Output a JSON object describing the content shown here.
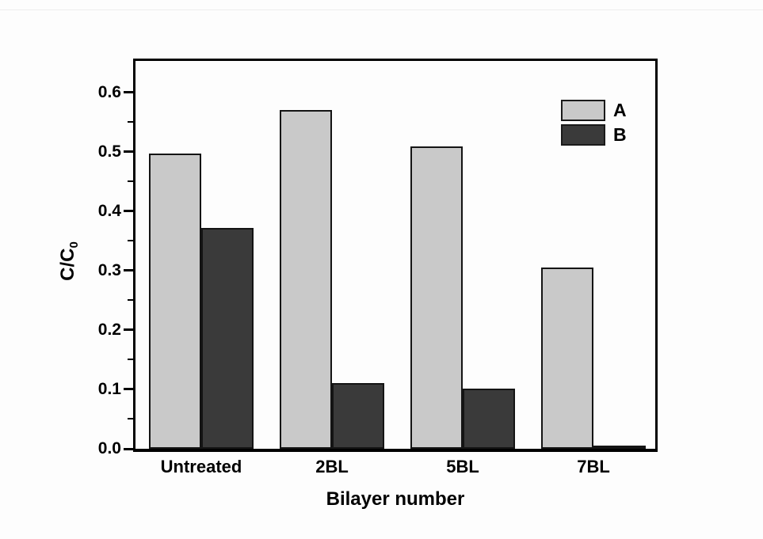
{
  "figure": {
    "background": "#fdfdfd",
    "axis_color": "#000000",
    "bar_border_color": "#141414"
  },
  "chart_data": {
    "type": "bar",
    "title": "",
    "xlabel": "Bilayer number",
    "ylabel": "C/C",
    "ylabel_subscript": "0",
    "categories": [
      "Untreated",
      "2BL",
      "5BL",
      "7BL"
    ],
    "series": [
      {
        "name": "A",
        "color": "#c9c9c9",
        "values": [
          0.497,
          0.571,
          0.509,
          0.305
        ]
      },
      {
        "name": "B",
        "color": "#3a3a3a",
        "values": [
          0.372,
          0.111,
          0.101,
          0.005
        ]
      }
    ],
    "ylim": [
      0,
      0.6533
    ],
    "yticks": [
      0.0,
      0.1,
      0.2,
      0.3,
      0.4,
      0.5,
      0.6
    ],
    "ytick_labels": [
      "0.0",
      "0.1",
      "0.2",
      "0.3",
      "0.4",
      "0.5",
      "0.6"
    ],
    "minor_ytick_step": 0.05,
    "grid": false,
    "legend_position": "upper right",
    "legend_labels": [
      "A",
      "B"
    ]
  }
}
